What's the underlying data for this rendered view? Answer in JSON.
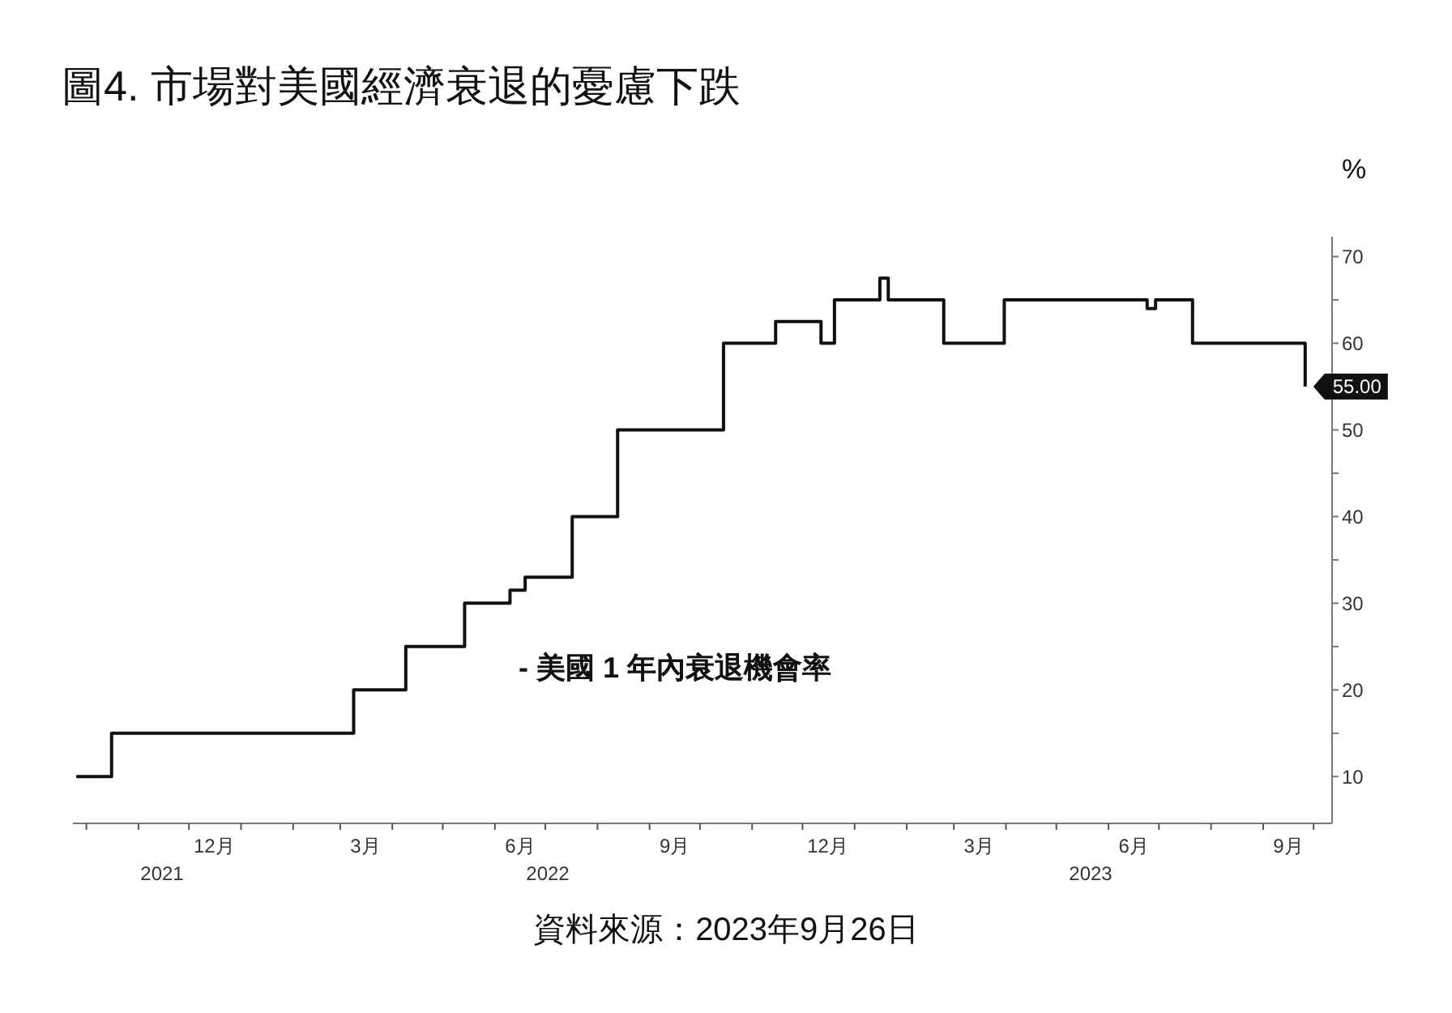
{
  "chart_data": {
    "type": "step",
    "title": "圖4. 市場對美國經濟衰退的憂慮下跌",
    "ylabel": "%",
    "legend": "bottom",
    "line_style": "solid",
    "marker": "none",
    "x": [
      "2021-09-25",
      "2021-10-16",
      "2022-03-09",
      "2022-04-09",
      "2022-05-14",
      "2022-06-10",
      "2022-06-19",
      "2022-07-17",
      "2022-08-13",
      "2022-10-15",
      "2022-11-15",
      "2022-12-12",
      "2022-12-20",
      "2023-01-16",
      "2023-01-21",
      "2023-02-23",
      "2023-03-31",
      "2023-06-24",
      "2023-06-29",
      "2023-07-21",
      "2023-09-26"
    ],
    "series": [
      {
        "name": "- 美國 1 年內衰退機會率",
        "color": "#111111",
        "values": [
          10,
          15,
          20,
          25,
          30,
          31.5,
          33,
          40,
          50,
          60,
          62.5,
          60,
          65,
          67.5,
          65,
          60,
          65,
          64,
          65,
          60,
          55
        ],
        "value_labels": [
          null,
          null,
          null,
          null,
          null,
          null,
          null,
          null,
          null,
          null,
          null,
          null,
          null,
          null,
          null,
          null,
          null,
          null,
          null,
          null,
          "55.00"
        ]
      }
    ],
    "xlim": [
      "2021-09-23",
      "2023-10-12"
    ],
    "xticks": [
      {
        "value": "2021-10-01",
        "label": null
      },
      {
        "value": "2021-11-01",
        "label": null
      },
      {
        "value": "2021-12-01",
        "label": null
      },
      {
        "value": "2021-12-16",
        "label": "12月"
      },
      {
        "value": "2022-01-01",
        "label": null
      },
      {
        "value": "2022-02-01",
        "label": null
      },
      {
        "value": "2022-03-01",
        "label": null
      },
      {
        "value": "2022-03-16",
        "label": "3月"
      },
      {
        "value": "2022-04-01",
        "label": null
      },
      {
        "value": "2022-05-01",
        "label": null
      },
      {
        "value": "2022-06-01",
        "label": null
      },
      {
        "value": "2022-06-16",
        "label": "6月"
      },
      {
        "value": "2022-07-01",
        "label": null
      },
      {
        "value": "2022-08-01",
        "label": null
      },
      {
        "value": "2022-09-01",
        "label": null
      },
      {
        "value": "2022-09-16",
        "label": "9月"
      },
      {
        "value": "2022-10-01",
        "label": null
      },
      {
        "value": "2022-11-01",
        "label": null
      },
      {
        "value": "2022-12-01",
        "label": null
      },
      {
        "value": "2022-12-16",
        "label": "12月"
      },
      {
        "value": "2023-01-01",
        "label": null
      },
      {
        "value": "2023-02-01",
        "label": null
      },
      {
        "value": "2023-03-01",
        "label": null
      },
      {
        "value": "2023-03-16",
        "label": "3月"
      },
      {
        "value": "2023-04-01",
        "label": null
      },
      {
        "value": "2023-05-01",
        "label": null
      },
      {
        "value": "2023-06-01",
        "label": null
      },
      {
        "value": "2023-06-16",
        "label": "6月"
      },
      {
        "value": "2023-07-01",
        "label": null
      },
      {
        "value": "2023-08-01",
        "label": null
      },
      {
        "value": "2023-09-01",
        "label": null
      },
      {
        "value": "2023-09-16",
        "label": "9月"
      },
      {
        "value": "2023-10-01",
        "label": null
      }
    ],
    "ylim": [
      4.6,
      72.3
    ],
    "yticks": [
      10,
      {
        "value": 15,
        "label": null
      },
      20,
      {
        "value": 25,
        "label": null
      },
      30,
      {
        "value": 35,
        "label": null
      },
      40,
      {
        "value": 45,
        "label": null
      },
      50,
      {
        "value": 55,
        "label": null
      },
      60,
      {
        "value": 65,
        "label": null
      },
      70
    ],
    "annotations": [
      "2021",
      "2022",
      "2023",
      "資料來源：2023年9月26日"
    ]
  }
}
